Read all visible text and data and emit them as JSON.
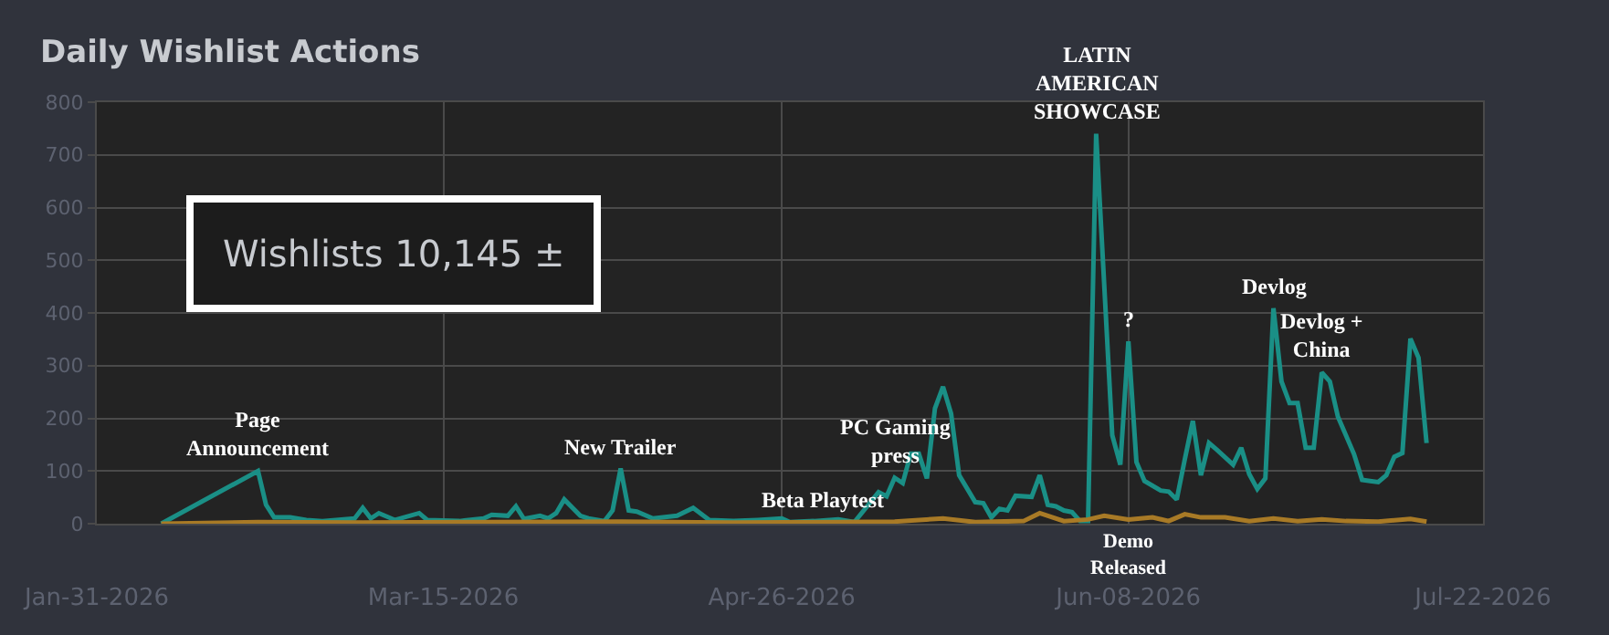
{
  "chart_data": {
    "type": "line",
    "title": "Daily Wishlist Actions",
    "xlim": [
      "2026-01-31",
      "2026-07-22"
    ],
    "xticks": [
      {
        "value": "2026-01-31",
        "label": "Jan-31-2026"
      },
      {
        "value": "2026-03-15",
        "label": "Mar-15-2026"
      },
      {
        "value": "2026-04-26",
        "label": "Apr-26-2026"
      },
      {
        "value": "2026-06-08",
        "label": "Jun-08-2026"
      },
      {
        "value": "2026-07-22",
        "label": "Jul-22-2026"
      }
    ],
    "ylim": [
      0,
      800
    ],
    "yticks": [
      0,
      100,
      200,
      300,
      400,
      500,
      600,
      700,
      800
    ],
    "grid": true,
    "marker": "none",
    "line_style": "solid",
    "series": [
      {
        "color": "#1a8f86",
        "x": [
          "2026-02-08",
          "2026-02-20",
          "2026-02-21",
          "2026-02-22",
          "2026-02-24",
          "2026-02-26",
          "2026-02-28",
          "2026-03-04",
          "2026-03-05",
          "2026-03-06",
          "2026-03-07",
          "2026-03-09",
          "2026-03-12",
          "2026-03-13",
          "2026-03-17",
          "2026-03-20",
          "2026-03-21",
          "2026-03-23",
          "2026-03-24",
          "2026-03-25",
          "2026-03-27",
          "2026-03-28",
          "2026-03-29",
          "2026-03-30",
          "2026-04-01",
          "2026-04-02",
          "2026-04-04",
          "2026-04-05",
          "2026-04-06",
          "2026-04-07",
          "2026-04-08",
          "2026-04-10",
          "2026-04-13",
          "2026-04-15",
          "2026-04-17",
          "2026-04-20",
          "2026-04-23",
          "2026-04-26",
          "2026-04-27",
          "2026-04-30",
          "2026-05-03",
          "2026-05-05",
          "2026-05-08",
          "2026-05-09",
          "2026-05-10",
          "2026-05-11",
          "2026-05-12",
          "2026-05-13",
          "2026-05-14",
          "2026-05-15",
          "2026-05-16",
          "2026-05-17",
          "2026-05-18",
          "2026-05-20",
          "2026-05-21",
          "2026-05-22",
          "2026-05-23",
          "2026-05-24",
          "2026-05-25",
          "2026-05-27",
          "2026-05-28",
          "2026-05-29",
          "2026-05-30",
          "2026-05-31",
          "2026-06-01",
          "2026-06-02",
          "2026-06-03",
          "2026-06-04",
          "2026-06-06",
          "2026-06-07",
          "2026-06-08",
          "2026-06-09",
          "2026-06-10",
          "2026-06-12",
          "2026-06-13",
          "2026-06-14",
          "2026-06-15",
          "2026-06-16",
          "2026-06-17",
          "2026-06-18",
          "2026-06-19",
          "2026-06-21",
          "2026-06-22",
          "2026-06-23",
          "2026-06-24",
          "2026-06-25",
          "2026-06-26",
          "2026-06-27",
          "2026-06-28",
          "2026-06-29",
          "2026-06-30",
          "2026-07-01",
          "2026-07-02",
          "2026-07-03",
          "2026-07-04",
          "2026-07-06",
          "2026-07-07",
          "2026-07-08",
          "2026-07-09",
          "2026-07-10",
          "2026-07-11",
          "2026-07-12",
          "2026-07-13",
          "2026-07-14",
          "2026-07-15"
        ],
        "values": [
          0,
          100,
          36,
          12,
          12,
          7,
          5,
          10,
          30,
          10,
          20,
          7,
          20,
          7,
          5,
          10,
          17,
          15,
          33,
          9,
          15,
          10,
          20,
          46,
          15,
          10,
          5,
          25,
          105,
          25,
          23,
          10,
          15,
          30,
          7,
          5,
          7,
          10,
          3,
          5,
          8,
          3,
          60,
          52,
          87,
          77,
          133,
          133,
          86,
          219,
          260,
          209,
          92,
          41,
          39,
          12,
          28,
          25,
          53,
          51,
          92,
          36,
          33,
          25,
          22,
          5,
          5,
          740,
          168,
          112,
          346,
          117,
          81,
          63,
          61,
          46,
          122,
          195,
          92,
          153,
          140,
          112,
          144,
          94,
          66,
          86,
          409,
          270,
          229,
          229,
          144,
          144,
          287,
          270,
          203,
          132,
          83,
          81,
          79,
          92,
          127,
          134,
          351,
          315,
          153
        ]
      },
      {
        "color": "#a87a26",
        "x": [
          "2026-02-08",
          "2026-02-20",
          "2026-03-05",
          "2026-03-20",
          "2026-04-06",
          "2026-04-20",
          "2026-05-03",
          "2026-05-10",
          "2026-05-16",
          "2026-05-20",
          "2026-05-26",
          "2026-05-28",
          "2026-05-31",
          "2026-06-03",
          "2026-06-05",
          "2026-06-08",
          "2026-06-11",
          "2026-06-13",
          "2026-06-15",
          "2026-06-17",
          "2026-06-20",
          "2026-06-23",
          "2026-06-26",
          "2026-06-29",
          "2026-07-02",
          "2026-07-05",
          "2026-07-09",
          "2026-07-13",
          "2026-07-15"
        ],
        "values": [
          0,
          3,
          2,
          3,
          4,
          2,
          3,
          4,
          10,
          3,
          5,
          20,
          5,
          8,
          15,
          8,
          12,
          5,
          18,
          12,
          12,
          5,
          10,
          5,
          8,
          5,
          4,
          9,
          4
        ]
      }
    ],
    "annotations": [
      "Wishlists 10,145 ±",
      {
        "text": "Page\nAnnouncement",
        "x": "2026-02-20",
        "y": 100
      },
      {
        "text": "New Trailer",
        "x": "2026-04-06",
        "y": 105
      },
      {
        "text": "Beta Playtest",
        "x": "2026-05-01",
        "y": 5
      },
      {
        "text": "PC Gaming\npress",
        "x": "2026-05-10",
        "y": 87
      },
      {
        "text": "LATIN\nAMERICAN\nSHOWCASE",
        "x": "2026-06-04",
        "y": 740
      },
      {
        "text": "?",
        "x": "2026-06-08",
        "y": 346
      },
      {
        "text": "Demo\nReleased",
        "x": "2026-06-08",
        "y": 0
      },
      {
        "text": "Devlog",
        "x": "2026-06-26",
        "y": 409
      },
      {
        "text": "Devlog +\nChina",
        "x": "2026-07-02",
        "y": 287
      }
    ]
  }
}
